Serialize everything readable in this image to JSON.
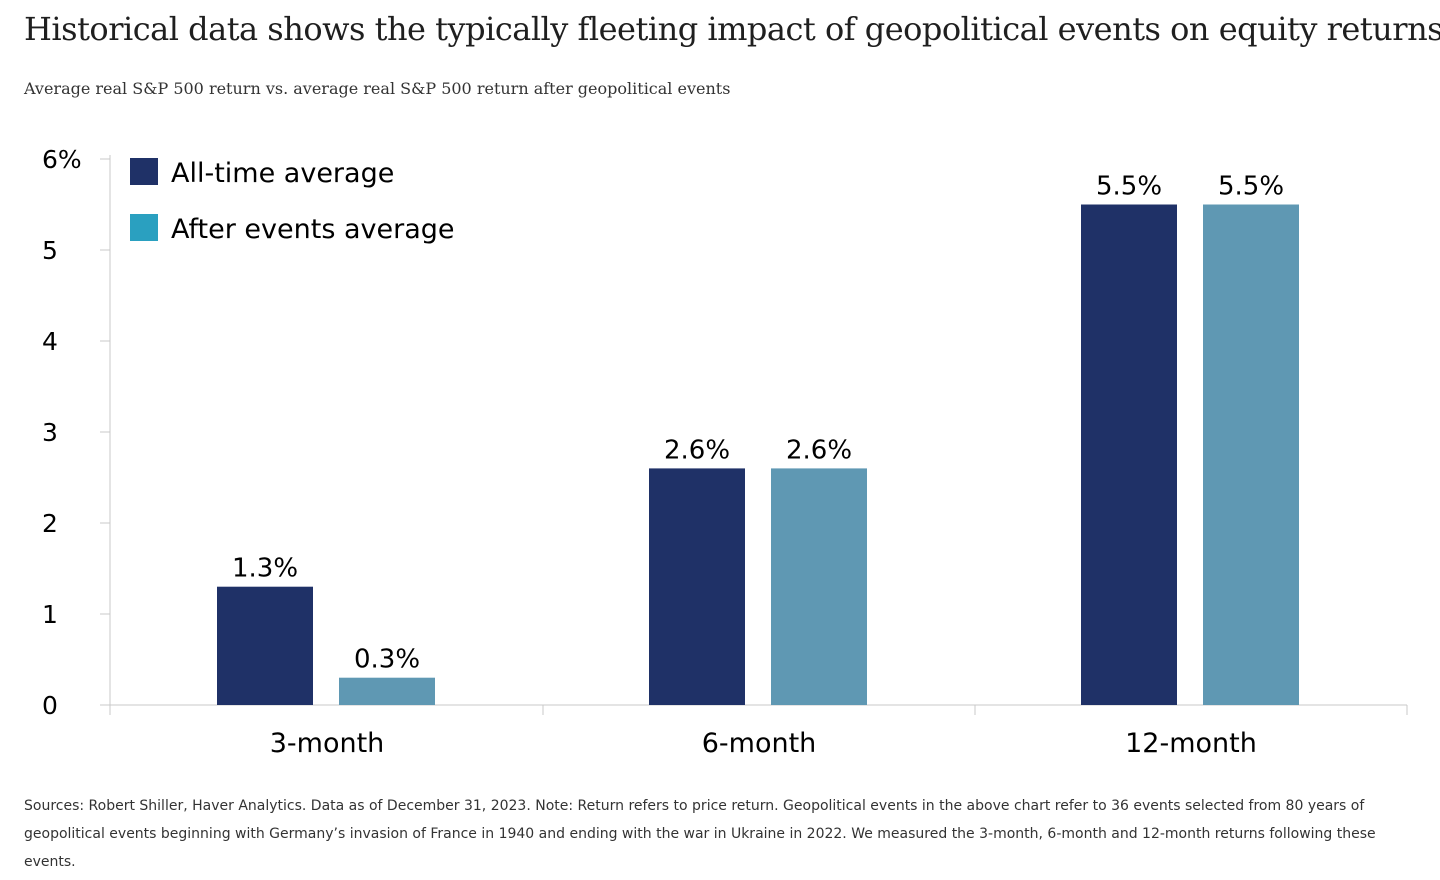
{
  "title": "Historical data shows the typically fleeting impact of geopolitical events on equity returns",
  "subtitle": "Average real S&P 500 return vs. average real S&P 500 return after geopolitical events",
  "footnote": "Sources: Robert Shiller, Haver Analytics. Data as of December 31, 2023. Note: Return refers to price return. Geopolitical events in the above chart refer to 36 events selected from 80 years of geopolitical events beginning with Germany’s invasion of France in 1940 and ending with the war in Ukraine in 2022. We measured the 3-month, 6-month and 12-month returns following these events.",
  "colors": {
    "all_time": "#1f3167",
    "after_events": "#5f98b3",
    "legend_after_events": "#2aa0c0",
    "axis": "#c8c8c8"
  },
  "chart_data": {
    "type": "bar",
    "categories": [
      "3-month",
      "6-month",
      "12-month"
    ],
    "series": [
      {
        "name": "All-time average",
        "values": [
          1.3,
          2.6,
          5.5
        ],
        "labels": [
          "1.3%",
          "2.6%",
          "5.5%"
        ]
      },
      {
        "name": "After events average",
        "values": [
          0.3,
          2.6,
          5.5
        ],
        "labels": [
          "0.3%",
          "2.6%",
          "5.5%"
        ]
      }
    ],
    "ylim": [
      0,
      6
    ],
    "yticks": [
      0,
      1,
      2,
      3,
      4,
      5,
      6
    ],
    "ytick_labels": [
      "0",
      "1",
      "2",
      "3",
      "4",
      "5",
      "6%"
    ],
    "xlabel": "",
    "ylabel": "",
    "legend_position": "top-left",
    "grid": false
  }
}
